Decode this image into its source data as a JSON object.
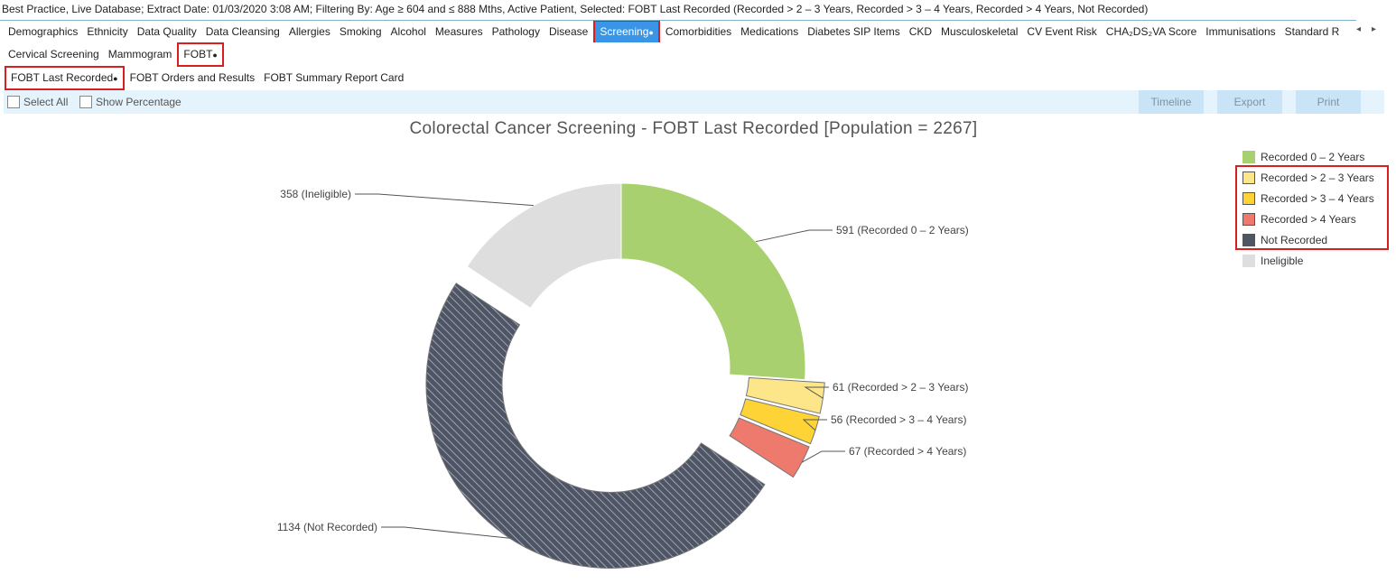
{
  "status_bar": "Best Practice, Live Database; Extract Date: 01/03/2020 3:08 AM; Filtering By: Age ≥ 604 and ≤ 888 Mths, Active Patient, Selected: FOBT Last Recorded (Recorded > 2 – 3 Years, Recorded > 3 – 4 Years, Recorded > 4 Years, Not Recorded)",
  "main_tabs": [
    "Demographics",
    "Ethnicity",
    "Data Quality",
    "Data Cleansing",
    "Allergies",
    "Smoking",
    "Alcohol",
    "Measures",
    "Pathology",
    "Disease",
    "Screening",
    "Comorbidities",
    "Medications",
    "Diabetes SIP Items",
    "CKD",
    "Musculoskeletal",
    "CV Event Risk",
    "CHA₂DS₂VA Score",
    "Immunisations",
    "Standard R"
  ],
  "active_main_tab": "Screening",
  "sub_tabs": [
    "Cervical Screening",
    "Mammogram",
    "FOBT"
  ],
  "active_sub_tab": "FOBT",
  "report_tabs": [
    "FOBT Last Recorded",
    "FOBT Orders and Results",
    "FOBT Summary Report Card"
  ],
  "active_report_tab": "FOBT Last Recorded",
  "active_marker": "●",
  "scroll_left": "◂",
  "scroll_right": "▸",
  "toolbar": {
    "select_all": "Select All",
    "show_percentage": "Show Percentage",
    "timeline": "Timeline",
    "export": "Export",
    "print": "Print"
  },
  "chart_data": {
    "type": "pie",
    "title": "Colorectal Cancer Screening - FOBT Last Recorded [Population = 2267]",
    "donut": true,
    "legend_position": "top-right",
    "slices": [
      {
        "name": "Recorded 0 – 2 Years",
        "value": 591,
        "label": "591 (Recorded 0 – 2 Years)",
        "color": "#a8d06e",
        "selected": false
      },
      {
        "name": "Recorded > 2 – 3 Years",
        "value": 61,
        "label": "61 (Recorded > 2 – 3 Years)",
        "color": "#fde68a",
        "selected": true
      },
      {
        "name": "Recorded > 3 – 4 Years",
        "value": 56,
        "label": "56 (Recorded > 3 – 4 Years)",
        "color": "#fdd335",
        "selected": true
      },
      {
        "name": "Recorded > 4 Years",
        "value": 67,
        "label": "67 (Recorded > 4 Years)",
        "color": "#ee7a6e",
        "selected": true
      },
      {
        "name": "Not Recorded",
        "value": 1134,
        "label": "1134 (Not Recorded)",
        "color": "#4f5563",
        "selected": true
      },
      {
        "name": "Ineligible",
        "value": 358,
        "label": "358 (Ineligible)",
        "color": "#dedede",
        "selected": false
      }
    ]
  }
}
